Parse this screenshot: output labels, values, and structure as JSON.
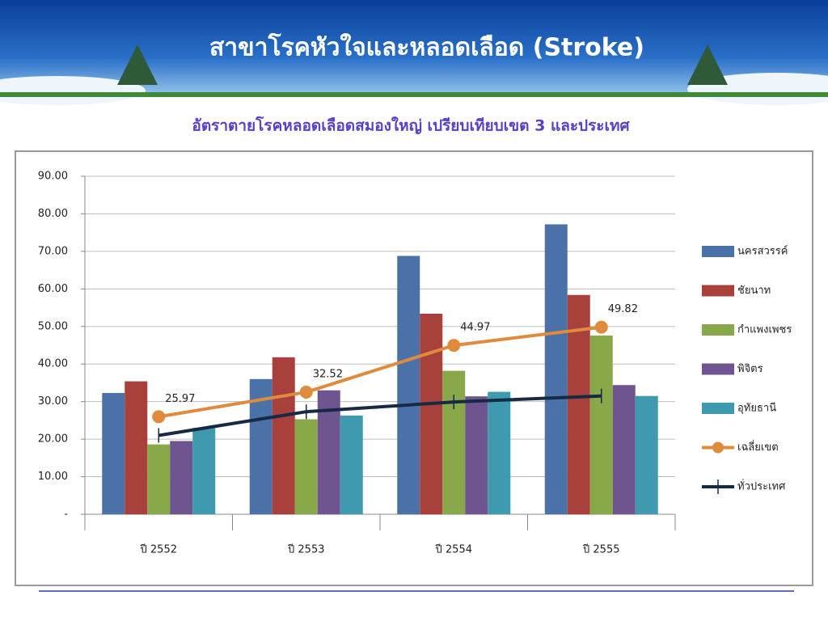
{
  "header": {
    "title": "สาขาโรคหัวใจและหลอดเลือด (Stroke)"
  },
  "chart_data": {
    "type": "bar",
    "title": "อัตราตายโรคหลอดเลือดสมองใหญ่ เปรียบเทียบเขต 3 และประเทศ",
    "categories": [
      "ปี 2552",
      "ปี 2553",
      "ปี 2554",
      "ปี 2555"
    ],
    "series": [
      {
        "name": "นครสวรรค์",
        "color": "#4a72a8",
        "values": [
          32.3,
          36.0,
          68.8,
          77.2
        ]
      },
      {
        "name": "ชัยนาท",
        "color": "#a8403c",
        "values": [
          35.4,
          41.8,
          53.4,
          58.4
        ]
      },
      {
        "name": "กำแพงเพชร",
        "color": "#88a84a",
        "values": [
          18.6,
          25.3,
          38.2,
          47.6
        ]
      },
      {
        "name": "พิจิตร",
        "color": "#6e5590",
        "values": [
          19.5,
          33.0,
          31.4,
          34.4
        ]
      },
      {
        "name": "อุทัยธานี",
        "color": "#3f9ab0",
        "values": [
          23.0,
          26.3,
          32.6,
          31.5
        ]
      },
      {
        "name": "เฉลี่ยเขต",
        "color": "#e08a3c",
        "type": "line",
        "marker": "circle",
        "data_labels": true,
        "values": [
          25.97,
          32.52,
          44.97,
          49.82
        ]
      },
      {
        "name": "ทั่วประเทศ",
        "color": "#162a44",
        "type": "line",
        "marker": "plus",
        "values": [
          21.0,
          27.3,
          29.9,
          31.5
        ]
      }
    ],
    "ylim": [
      0,
      90
    ],
    "yticks": [
      {
        "value": 0,
        "label": "-"
      },
      {
        "value": 10,
        "label": "10.00"
      },
      {
        "value": 20,
        "label": "20.00"
      },
      {
        "value": 30,
        "label": "30.00"
      },
      {
        "value": 40,
        "label": "40.00"
      },
      {
        "value": 50,
        "label": "50.00"
      },
      {
        "value": 60,
        "label": "60.00"
      },
      {
        "value": 70,
        "label": "70.00"
      },
      {
        "value": 80,
        "label": "80.00"
      },
      {
        "value": 90,
        "label": "90.00"
      }
    ],
    "grid": true,
    "legend": "right"
  }
}
